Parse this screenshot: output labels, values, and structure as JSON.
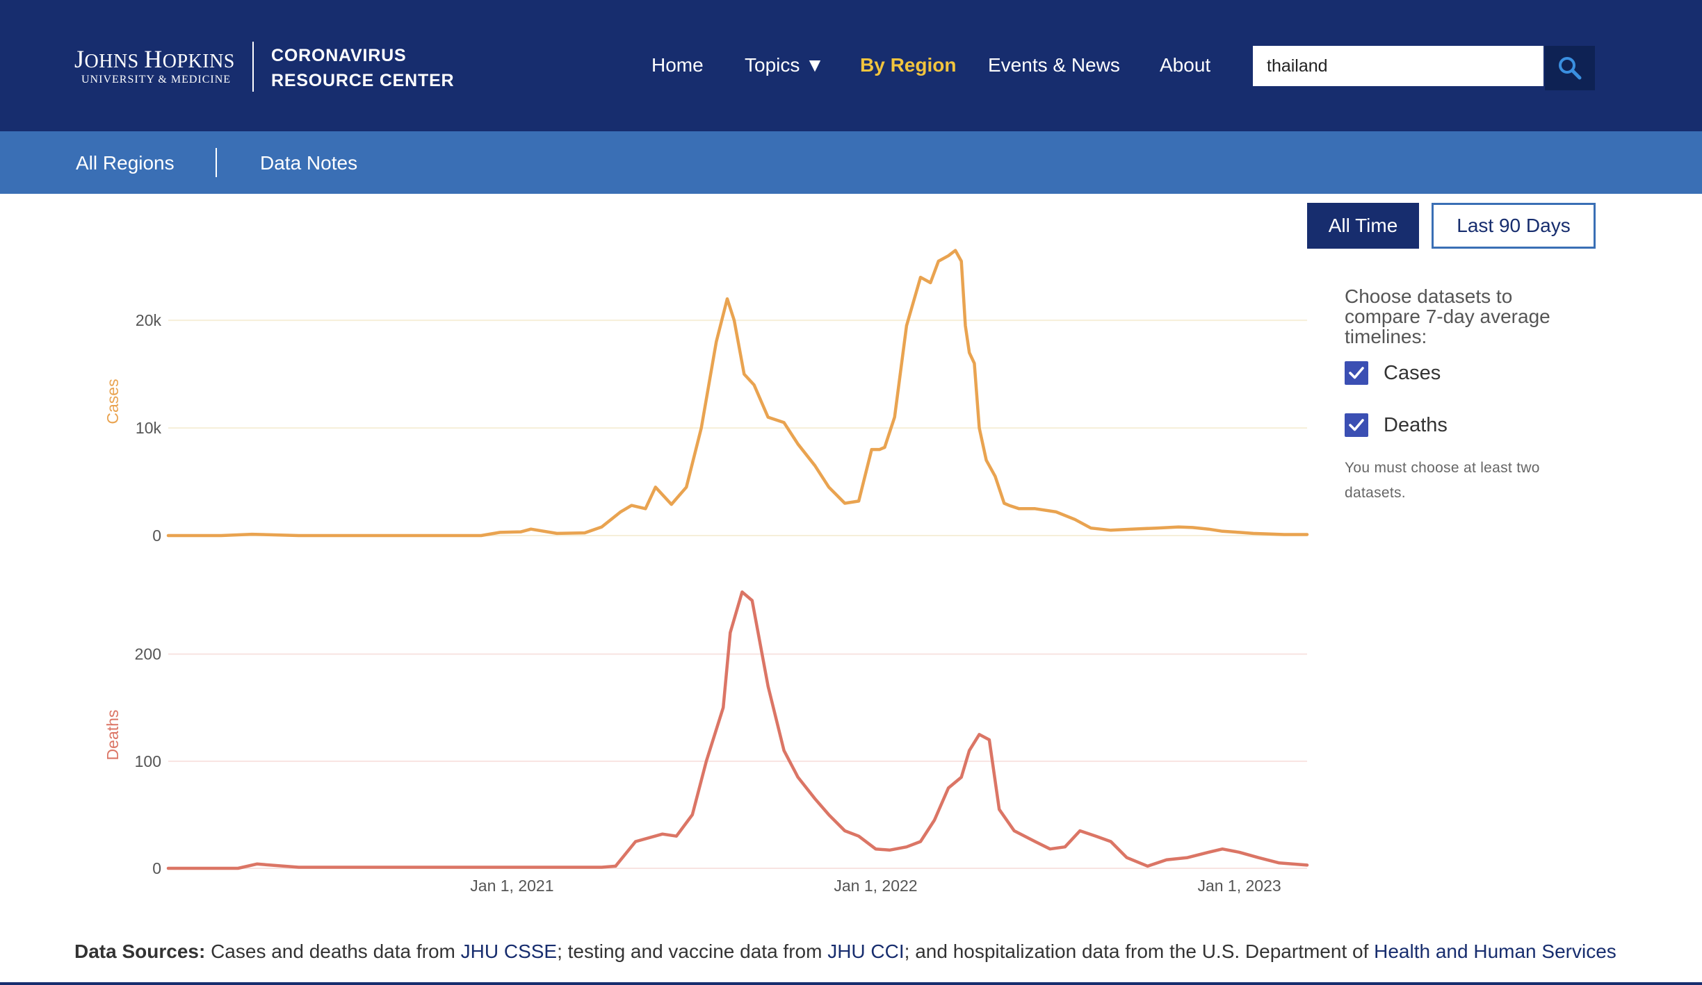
{
  "header": {
    "logo": {
      "line1_a": "J",
      "line1_b": "OHNS ",
      "line1_c": "H",
      "line1_d": "OPKINS",
      "line2": "UNIVERSITY & MEDICINE",
      "crc_line1": "CORONAVIRUS",
      "crc_line2": "RESOURCE CENTER"
    },
    "nav": [
      "Home",
      "Topics ▼",
      "By Region",
      "Events & News",
      "About"
    ],
    "active_nav": "By Region",
    "search_value": "thailand"
  },
  "subnav": {
    "items": [
      "All Regions",
      "Data Notes"
    ]
  },
  "time_buttons": {
    "all_time": "All Time",
    "last_90": "Last 90 Days",
    "selected": "All Time"
  },
  "panel": {
    "choose_text": "Choose datasets to compare 7-day average timelines:",
    "datasets": [
      {
        "label": "Cases",
        "checked": true
      },
      {
        "label": "Deaths",
        "checked": true
      }
    ],
    "note": "You must choose at least two datasets."
  },
  "footer": {
    "bold": "Data Sources:",
    "text1": " Cases and deaths data from ",
    "link1": "JHU CSSE",
    "text2": "; testing and vaccine data from ",
    "link2": "JHU CCI",
    "text3": "; and hospitalization data from the U.S. Department of ",
    "link3": "Health and Human Services"
  },
  "colors": {
    "header_bg": "#172d6e",
    "subnav_bg": "#3a6fb5",
    "active_nav": "#f1c43e",
    "cases": "#e9a350",
    "deaths": "#db7565",
    "checkbox": "#3b4fb3"
  },
  "chart_data": [
    {
      "type": "line",
      "ylabel": "Cases",
      "ylim": [
        0,
        27500
      ],
      "yticks": [
        0,
        10000,
        20000
      ],
      "ytick_labels": [
        "0",
        "10k",
        "20k"
      ],
      "series": [
        {
          "name": "Cases",
          "x": [
            "2020-01-22",
            "2020-03-15",
            "2020-04-15",
            "2020-06-01",
            "2020-09-01",
            "2020-12-01",
            "2020-12-20",
            "2021-01-10",
            "2021-01-20",
            "2021-02-15",
            "2021-03-15",
            "2021-04-01",
            "2021-04-20",
            "2021-05-01",
            "2021-05-15",
            "2021-05-25",
            "2021-06-10",
            "2021-06-25",
            "2021-07-10",
            "2021-07-25",
            "2021-08-05",
            "2021-08-12",
            "2021-08-22",
            "2021-09-01",
            "2021-09-15",
            "2021-10-01",
            "2021-10-15",
            "2021-11-01",
            "2021-11-15",
            "2021-12-01",
            "2021-12-15",
            "2021-12-28",
            "2022-01-05",
            "2022-01-10",
            "2022-01-20",
            "2022-02-01",
            "2022-02-15",
            "2022-02-25",
            "2022-03-05",
            "2022-03-15",
            "2022-03-22",
            "2022-03-28",
            "2022-04-01",
            "2022-04-05",
            "2022-04-10",
            "2022-04-15",
            "2022-04-22",
            "2022-05-01",
            "2022-05-10",
            "2022-05-15",
            "2022-05-25",
            "2022-06-10",
            "2022-07-01",
            "2022-07-20",
            "2022-08-05",
            "2022-08-25",
            "2022-09-15",
            "2022-10-10",
            "2022-11-01",
            "2022-11-15",
            "2022-12-01",
            "2022-12-15",
            "2023-01-01",
            "2023-01-15",
            "2023-02-01",
            "2023-02-15",
            "2023-03-10"
          ],
          "values": [
            0,
            0,
            120,
            0,
            0,
            0,
            300,
            350,
            600,
            200,
            250,
            800,
            2200,
            2800,
            2500,
            4500,
            2900,
            4500,
            10000,
            18000,
            22000,
            20000,
            15000,
            14000,
            11000,
            10500,
            8500,
            6500,
            4500,
            3000,
            3200,
            8000,
            8000,
            8200,
            11000,
            19500,
            24000,
            23500,
            25500,
            26000,
            26500,
            25500,
            19500,
            17000,
            16000,
            10000,
            7000,
            5500,
            3000,
            2800,
            2500,
            2500,
            2200,
            1500,
            700,
            500,
            600,
            700,
            800,
            750,
            600,
            400,
            300,
            200,
            150,
            100,
            100
          ]
        }
      ]
    },
    {
      "type": "line",
      "ylabel": "Deaths",
      "ylim": [
        0,
        275
      ],
      "yticks": [
        0,
        100,
        200
      ],
      "ytick_labels": [
        "0",
        "100",
        "200"
      ],
      "series": [
        {
          "name": "Deaths",
          "x": [
            "2020-01-22",
            "2020-04-01",
            "2020-04-20",
            "2020-06-01",
            "2020-10-01",
            "2021-01-01",
            "2021-04-01",
            "2021-04-15",
            "2021-05-05",
            "2021-06-01",
            "2021-06-15",
            "2021-07-01",
            "2021-07-15",
            "2021-08-01",
            "2021-08-08",
            "2021-08-20",
            "2021-08-30",
            "2021-09-15",
            "2021-10-01",
            "2021-10-15",
            "2021-11-01",
            "2021-11-15",
            "2021-12-01",
            "2021-12-15",
            "2022-01-01",
            "2022-01-15",
            "2022-02-01",
            "2022-02-15",
            "2022-03-01",
            "2022-03-15",
            "2022-03-28",
            "2022-04-05",
            "2022-04-15",
            "2022-04-25",
            "2022-05-05",
            "2022-05-20",
            "2022-06-10",
            "2022-06-25",
            "2022-07-10",
            "2022-07-25",
            "2022-08-10",
            "2022-08-25",
            "2022-09-10",
            "2022-10-01",
            "2022-10-20",
            "2022-11-10",
            "2022-12-01",
            "2022-12-15",
            "2023-01-01",
            "2023-01-20",
            "2023-02-10",
            "2023-03-10"
          ],
          "values": [
            0,
            0,
            4,
            1,
            1,
            1,
            1,
            2,
            25,
            32,
            30,
            50,
            100,
            150,
            220,
            258,
            250,
            170,
            110,
            85,
            65,
            50,
            35,
            30,
            18,
            17,
            20,
            25,
            45,
            75,
            85,
            110,
            125,
            120,
            55,
            35,
            25,
            18,
            20,
            35,
            30,
            25,
            10,
            2,
            8,
            10,
            15,
            18,
            15,
            10,
            5,
            3
          ]
        }
      ]
    }
  ],
  "x_axis": {
    "ticks": [
      "2021-01-01",
      "2022-01-01",
      "2023-01-01"
    ],
    "tick_labels": [
      "Jan 1, 2021",
      "Jan 1, 2022",
      "Jan 1, 2023"
    ],
    "range": [
      "2020-01-22",
      "2023-03-10"
    ]
  }
}
